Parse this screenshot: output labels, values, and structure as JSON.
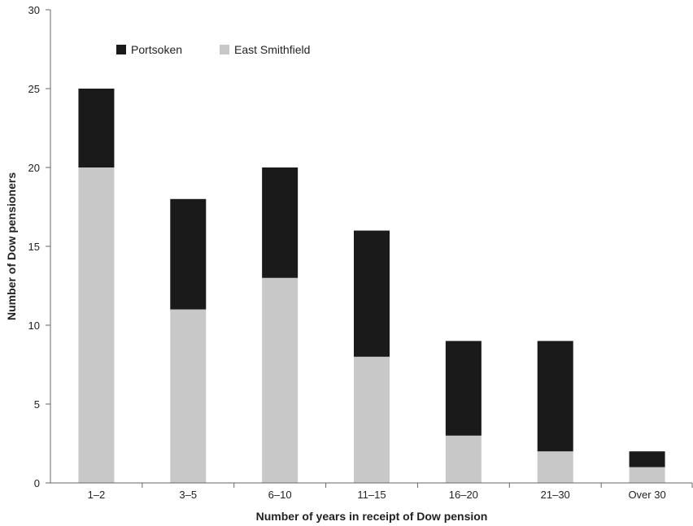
{
  "chart_data": {
    "type": "bar",
    "stacked": true,
    "categories": [
      "1–2",
      "3–5",
      "6–10",
      "11–15",
      "16–20",
      "21–30",
      "Over 30"
    ],
    "series": [
      {
        "name": "East Smithfield",
        "values": [
          20,
          11,
          13,
          8,
          3,
          2,
          1
        ],
        "color": "#c8c8c8"
      },
      {
        "name": "Portsoken",
        "values": [
          5,
          7,
          7,
          8,
          6,
          7,
          1
        ],
        "color": "#1a1a1a"
      }
    ],
    "xlabel": "Number of years in receipt of Dow pension",
    "ylabel": "Number of Dow pensioners",
    "ylim": [
      0,
      30
    ],
    "yticks": [
      0,
      5,
      10,
      15,
      20,
      25,
      30
    ],
    "grid": false,
    "legend_position": "top-left",
    "legend_order": [
      "Portsoken",
      "East Smithfield"
    ]
  }
}
